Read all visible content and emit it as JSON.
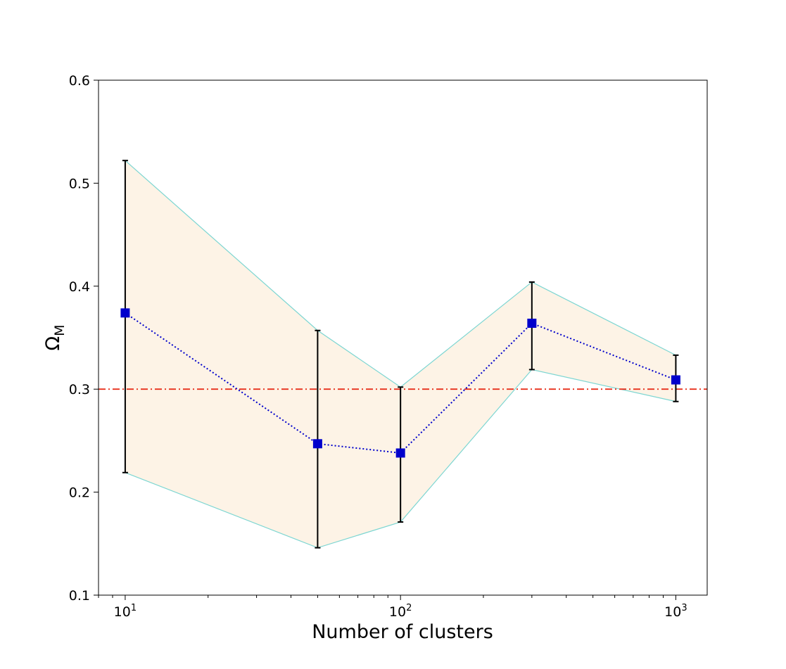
{
  "chart_data": {
    "type": "line",
    "title": "",
    "xlabel": "Number of clusters",
    "ylabel_main": "Ω",
    "ylabel_sub": "M",
    "xscale": "log",
    "xlim": [
      8,
      1300
    ],
    "ylim": [
      0.1,
      0.6
    ],
    "grid": false,
    "x": [
      10,
      50,
      100,
      300,
      1000
    ],
    "series": [
      {
        "values": [
          0.374,
          0.247,
          0.238,
          0.364,
          0.309
        ],
        "err_low": [
          0.219,
          0.146,
          0.171,
          0.319,
          0.288
        ],
        "err_high": [
          0.522,
          0.357,
          0.302,
          0.404,
          0.333
        ],
        "color": "#0000cc",
        "linestyle": "dotted",
        "marker": "square"
      }
    ],
    "band_fill_color": "#fdf3e6",
    "band_edge_color": "#7dd6d2",
    "reference_line": {
      "y": 0.3,
      "color": "#e8301c",
      "linestyle": "dashdot"
    },
    "x_ticks": [
      {
        "value": 10,
        "base": "10",
        "exp": "1"
      },
      {
        "value": 100,
        "base": "10",
        "exp": "2"
      },
      {
        "value": 1000,
        "base": "10",
        "exp": "3"
      }
    ],
    "y_ticks": [
      {
        "value": 0.1,
        "label": "0.1"
      },
      {
        "value": 0.2,
        "label": "0.2"
      },
      {
        "value": 0.3,
        "label": "0.3"
      },
      {
        "value": 0.4,
        "label": "0.4"
      },
      {
        "value": 0.5,
        "label": "0.5"
      },
      {
        "value": 0.6,
        "label": "0.6"
      }
    ]
  }
}
